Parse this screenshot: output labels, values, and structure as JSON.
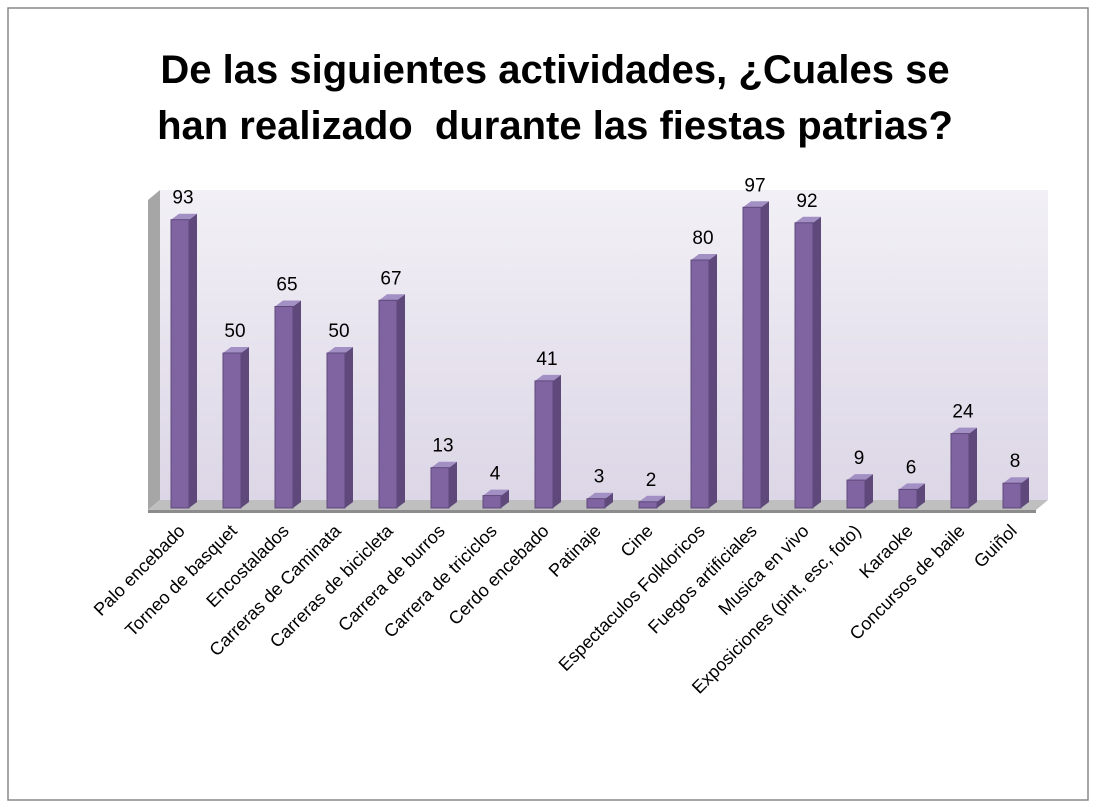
{
  "chart_data": {
    "type": "bar3d",
    "title": "De las siguientes actividades, ¿Cuales se han realizado  durante las fiestas patrias?",
    "categories": [
      "Palo encebado",
      "Torneo de basquet",
      "Encostalados",
      "Carreras de Caminata",
      "Carreras de bicicleta",
      "Carrera de burros",
      "Carrera de triciclos",
      "Cerdo encebado",
      "Patinaje",
      "Cine",
      "Espectaculos Folkloricos",
      "Fuegos artificiales",
      "Musica en vivo",
      "Exposiciones (pint, esc, foto)",
      "Karaoke",
      "Concursos de baile",
      "Guiñol"
    ],
    "values": [
      93,
      50,
      65,
      50,
      67,
      13,
      4,
      41,
      3,
      2,
      80,
      97,
      92,
      9,
      6,
      24,
      8
    ],
    "color": "#8064a2"
  }
}
